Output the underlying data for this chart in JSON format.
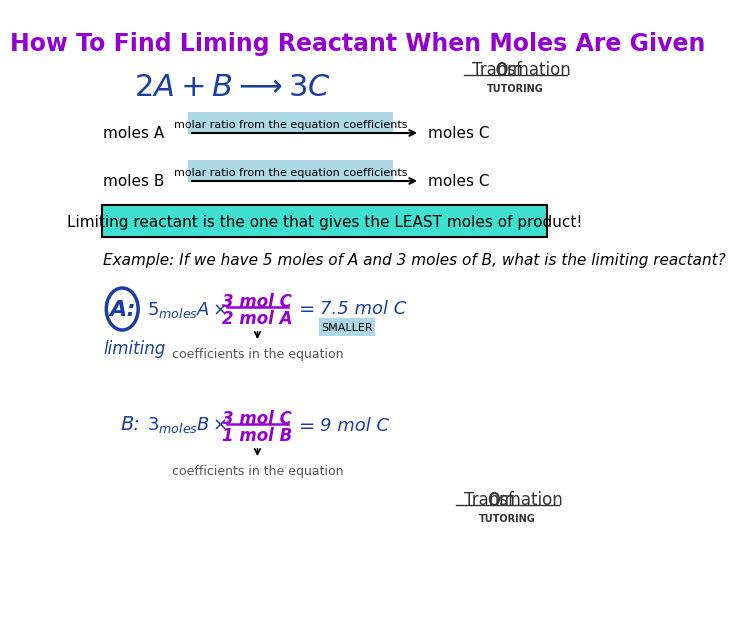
{
  "title": "How To Find Liming Reactant When Moles Are Given",
  "title_color": "#9400D3",
  "title_fontsize": 17,
  "bg_color": "#FFFFFF",
  "equation_color": "#1a3fa0",
  "equation_fontsize": 22,
  "logo_color": "#333333",
  "arrow_row1_label_top": "molar ratio from the equation coefficients",
  "arrow_row1_left": "moles A",
  "arrow_row1_right": "moles C",
  "arrow_row2_label_top": "molar ratio from the equation coefficients",
  "arrow_row2_left": "moles B",
  "arrow_row2_right": "moles C",
  "highlight_box_text": "Limiting reactant is the one that gives the LEAST moles of product!",
  "highlight_box_color": "#40E0D0",
  "highlight_box_text_color": "#000000",
  "example_text": "Example: If we have 5 moles of A and 3 moles of B, what is the limiting reactant?",
  "example_fontsize": 11,
  "handwriting_color_blue": "#1a3fa0",
  "handwriting_color_purple": "#9400D3",
  "label_color_bg": "#ADD8E6",
  "smaller_bg": "#ADD8E6"
}
